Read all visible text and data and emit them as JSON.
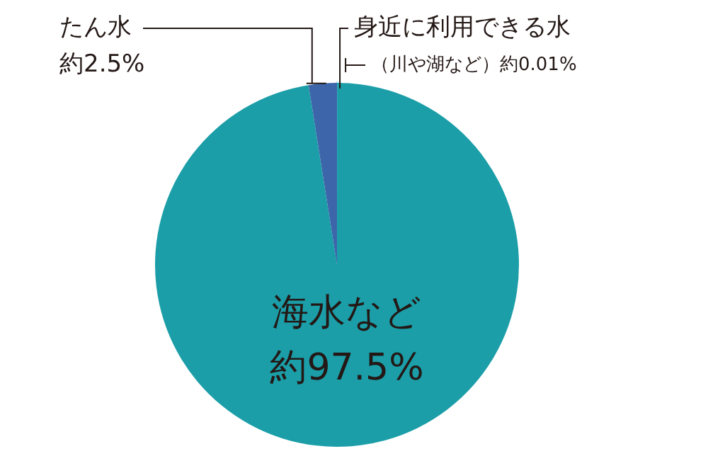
{
  "chart_data": {
    "type": "pie",
    "categories": [
      "身近に利用できる水",
      "海水など",
      "たん水"
    ],
    "values": [
      0.01,
      97.5,
      2.5
    ],
    "value_labels": [
      "（川や湖など）約0.01%",
      "約97.5%",
      "約2.5%"
    ],
    "colors": [
      "#cfeaf2",
      "#1b9ea8",
      "#3d66aa"
    ],
    "legend": false
  }
}
